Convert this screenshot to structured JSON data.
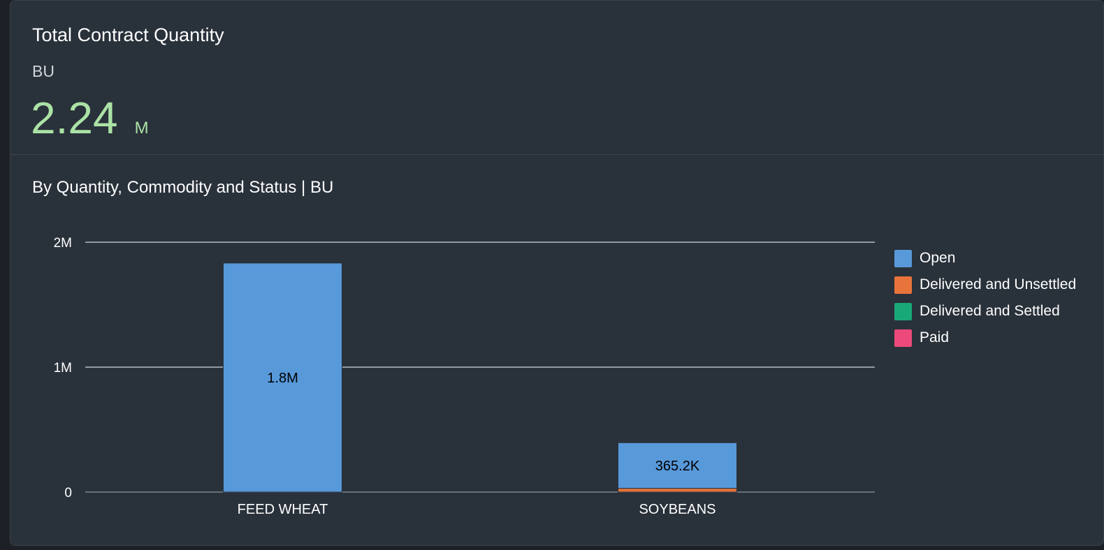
{
  "card": {
    "title": "Total Contract Quantity",
    "unit": "BU",
    "kpi_value": "2.24",
    "kpi_scale": "M",
    "kpi_color": "#abe2a5"
  },
  "chart_data": {
    "type": "bar",
    "stacked": true,
    "title": "By Quantity, Commodity and Status | BU",
    "xlabel": "",
    "ylabel": "",
    "categories": [
      "FEED WHEAT",
      "SOYBEANS"
    ],
    "ylim": [
      0,
      2000000
    ],
    "yticks": [
      {
        "value": 0,
        "label": "0"
      },
      {
        "value": 1000000,
        "label": "1M"
      },
      {
        "value": 2000000,
        "label": "2M"
      }
    ],
    "grid": true,
    "legend_position": "right",
    "series": [
      {
        "name": "Open",
        "color": "#5899da",
        "values": [
          1833000,
          365200
        ],
        "data_labels": [
          "1.8M",
          "365.2K"
        ]
      },
      {
        "name": "Delivered and Unsettled",
        "color": "#e8743b",
        "values": [
          0,
          30000
        ],
        "data_labels": [
          "",
          ""
        ]
      },
      {
        "name": "Delivered and Settled",
        "color": "#19a979",
        "values": [
          0,
          0
        ],
        "data_labels": [
          "",
          ""
        ]
      },
      {
        "name": "Paid",
        "color": "#ed4a7b",
        "values": [
          0,
          0
        ],
        "data_labels": [
          "",
          ""
        ]
      }
    ]
  }
}
